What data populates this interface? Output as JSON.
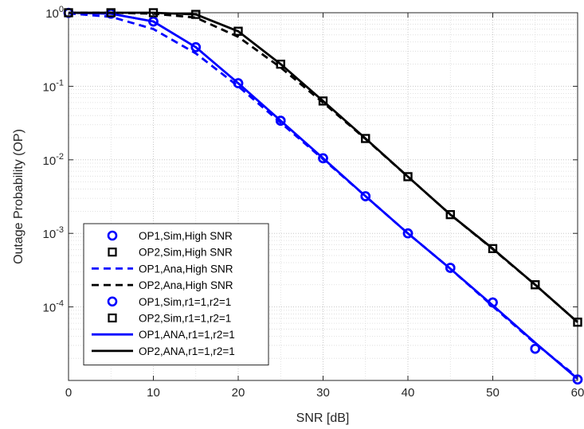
{
  "chart_data": {
    "type": "line",
    "xlabel": "SNR [dB]",
    "ylabel": "Outage Probability (OP)",
    "xlim": [
      0,
      60
    ],
    "ylim": [
      1e-05,
      1
    ],
    "yscale": "log",
    "grid": true,
    "minor_grid": true,
    "legend_position": "bottom-left",
    "x_ticks": [
      0,
      10,
      20,
      30,
      40,
      50,
      60
    ],
    "x_tick_labels": [
      "0",
      "10",
      "20",
      "30",
      "40",
      "50",
      "60"
    ],
    "y_ticks": [
      {
        "value": 1,
        "base": "10",
        "exp": "0"
      },
      {
        "value": 0.1,
        "base": "10",
        "exp": "-1"
      },
      {
        "value": 0.01,
        "base": "10",
        "exp": "-2"
      },
      {
        "value": 0.001,
        "base": "10",
        "exp": "-3"
      },
      {
        "value": 0.0001,
        "base": "10",
        "exp": "-4"
      }
    ],
    "x": [
      0,
      5,
      10,
      15,
      20,
      25,
      30,
      35,
      40,
      45,
      50,
      55,
      60
    ],
    "series": [
      {
        "name": "OP1,Sim,High SNR",
        "style": "marker",
        "marker": "circle",
        "color": "#0000ff",
        "values": [
          0.995,
          0.97,
          0.76,
          0.34,
          0.11,
          0.034,
          0.0105,
          0.0032,
          0.001,
          0.00034,
          0.000115,
          2.7e-05,
          1.03e-05
        ]
      },
      {
        "name": "OP2,Sim,High SNR",
        "style": "marker",
        "marker": "square",
        "color": "#000000",
        "values": [
          1,
          1,
          1,
          0.95,
          0.56,
          0.2,
          0.063,
          0.0195,
          0.0059,
          0.0018,
          0.00062,
          0.0002,
          6.2e-05
        ]
      },
      {
        "name": "OP1,Ana,High SNR",
        "style": "dashed",
        "color": "#0000ff",
        "values": [
          0.98,
          0.88,
          0.6,
          0.28,
          0.1,
          0.032,
          0.0102,
          0.0032,
          0.001,
          0.00033,
          0.000102,
          3.18e-05,
          1.1e-05
        ]
      },
      {
        "name": "OP2,Ana,High SNR",
        "style": "dashed",
        "color": "#000000",
        "values": [
          1,
          1,
          0.97,
          0.86,
          0.47,
          0.18,
          0.06,
          0.0192,
          0.0059,
          0.0018,
          0.00061,
          0.0002,
          6.2e-05
        ]
      },
      {
        "name": "OP1,Sim,r1=1,r2=1",
        "style": "marker",
        "marker": "circle",
        "color": "#0000ff",
        "values": [
          0.995,
          0.97,
          0.76,
          0.34,
          0.11,
          0.034,
          0.0105,
          0.0032,
          0.001,
          0.00034,
          0.000115,
          2.7e-05,
          1.03e-05
        ]
      },
      {
        "name": "OP2,Sim,r1=1,r2=1",
        "style": "marker",
        "marker": "square",
        "color": "#000000",
        "values": [
          1,
          1,
          1,
          0.95,
          0.56,
          0.2,
          0.063,
          0.0195,
          0.0059,
          0.0018,
          0.00062,
          0.0002,
          6.2e-05
        ]
      },
      {
        "name": "OP1,ANA,r1=1,r2=1",
        "style": "solid",
        "color": "#0000ff",
        "values": [
          1,
          0.97,
          0.76,
          0.34,
          0.11,
          0.034,
          0.0105,
          0.0032,
          0.001,
          0.00033,
          0.000105,
          3.25e-05,
          1.05e-05
        ]
      },
      {
        "name": "OP2,ANA,r1=1,r2=1",
        "style": "solid",
        "color": "#000000",
        "values": [
          1,
          1,
          1,
          0.95,
          0.56,
          0.2,
          0.063,
          0.0195,
          0.0059,
          0.0018,
          0.00062,
          0.0002,
          6.2e-05
        ]
      }
    ]
  }
}
